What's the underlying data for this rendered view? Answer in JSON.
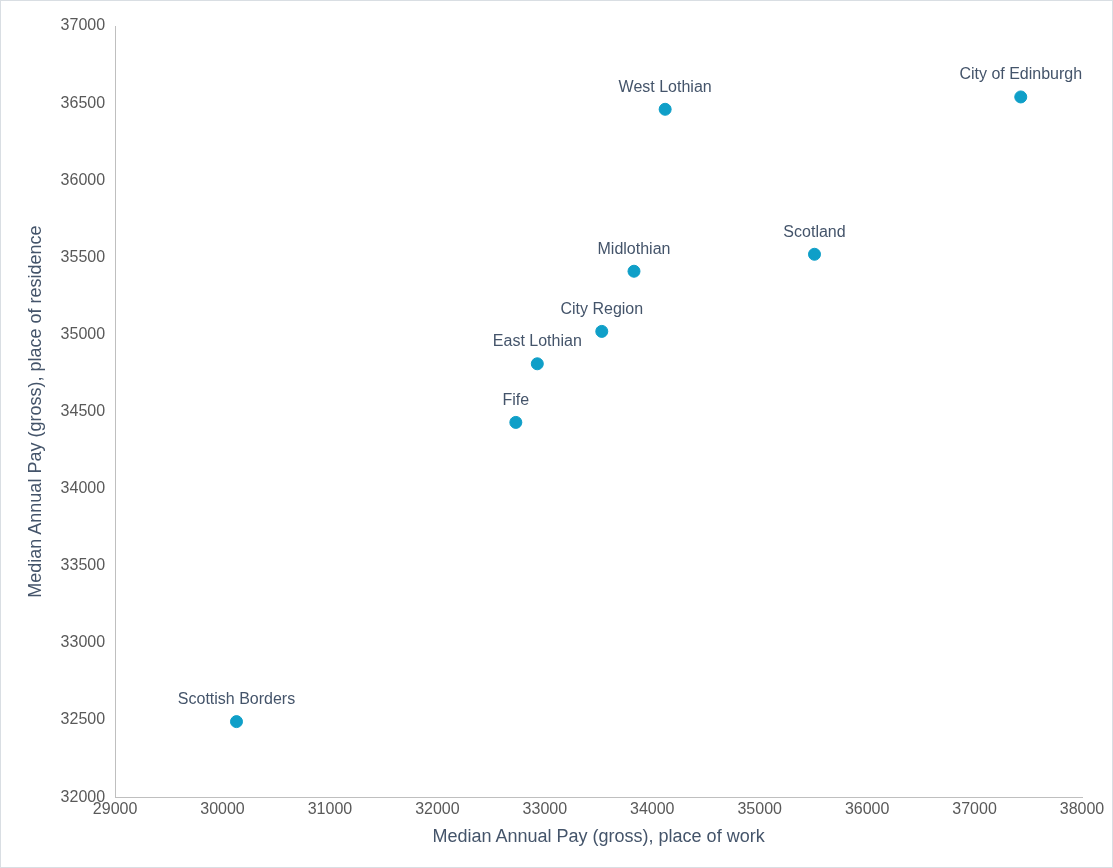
{
  "chart_data": {
    "type": "scatter",
    "xlabel": "Median Annual Pay (gross), place of work",
    "ylabel": "Median Annual Pay (gross), place of residence",
    "series": [
      {
        "color": "#0f9fc8",
        "x": [
          30130,
          32730,
          32930,
          33530,
          33830,
          34120,
          35510,
          37430
        ],
        "values": [
          32490,
          34430,
          34810,
          35020,
          35410,
          36460,
          35520,
          36540
        ]
      }
    ],
    "annotations": [
      {
        "text": "Scottish Borders",
        "x": 30130,
        "y": 32490
      },
      {
        "text": "Fife",
        "x": 32730,
        "y": 34430
      },
      {
        "text": "East Lothian",
        "x": 32930,
        "y": 34810
      },
      {
        "text": "City Region",
        "x": 33530,
        "y": 35020
      },
      {
        "text": "Midlothian",
        "x": 33830,
        "y": 35410
      },
      {
        "text": "West Lothian",
        "x": 34120,
        "y": 36460
      },
      {
        "text": "Scotland",
        "x": 35510,
        "y": 35520
      },
      {
        "text": "City of Edinburgh",
        "x": 37430,
        "y": 36540
      }
    ],
    "xlim": [
      29000,
      38000
    ],
    "xticks": [
      29000,
      30000,
      31000,
      32000,
      33000,
      34000,
      35000,
      36000,
      37000,
      38000
    ],
    "ylim": [
      32000,
      37000
    ],
    "yticks": [
      32000,
      32500,
      33000,
      33500,
      34000,
      34500,
      35000,
      35500,
      36000,
      36500,
      37000
    ],
    "grid": false,
    "legend": false,
    "marker": "circle"
  }
}
